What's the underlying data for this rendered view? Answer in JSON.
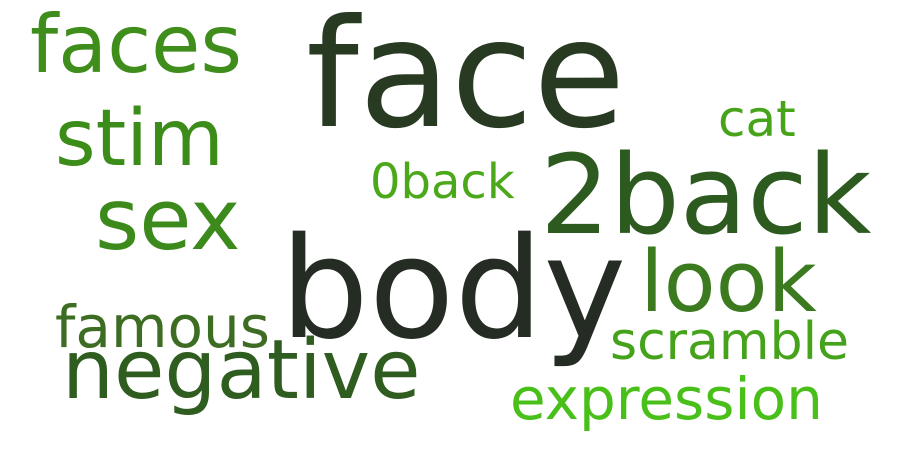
{
  "words": [
    {
      "key": "face",
      "text": "face",
      "color": "#283a22"
    },
    {
      "key": "body",
      "text": "body",
      "color": "#252c23"
    },
    {
      "key": "twoback",
      "text": "2back",
      "color": "#2d5a1f"
    },
    {
      "key": "faces",
      "text": "faces",
      "color": "#3f8d1a"
    },
    {
      "key": "sex",
      "text": "sex",
      "color": "#3b8a1b"
    },
    {
      "key": "stim",
      "text": "stim",
      "color": "#3c8c19"
    },
    {
      "key": "look",
      "text": "look",
      "color": "#3c7a1f"
    },
    {
      "key": "negative",
      "text": "negative",
      "color": "#2f5d1f"
    },
    {
      "key": "famous",
      "text": "famous",
      "color": "#3d6d22"
    },
    {
      "key": "zeroback",
      "text": "0back",
      "color": "#4aa81a"
    },
    {
      "key": "cat",
      "text": "cat",
      "color": "#47a41a"
    },
    {
      "key": "scramble",
      "text": "scramble",
      "color": "#45a31b"
    },
    {
      "key": "expression",
      "text": "expression",
      "color": "#49c019"
    }
  ]
}
